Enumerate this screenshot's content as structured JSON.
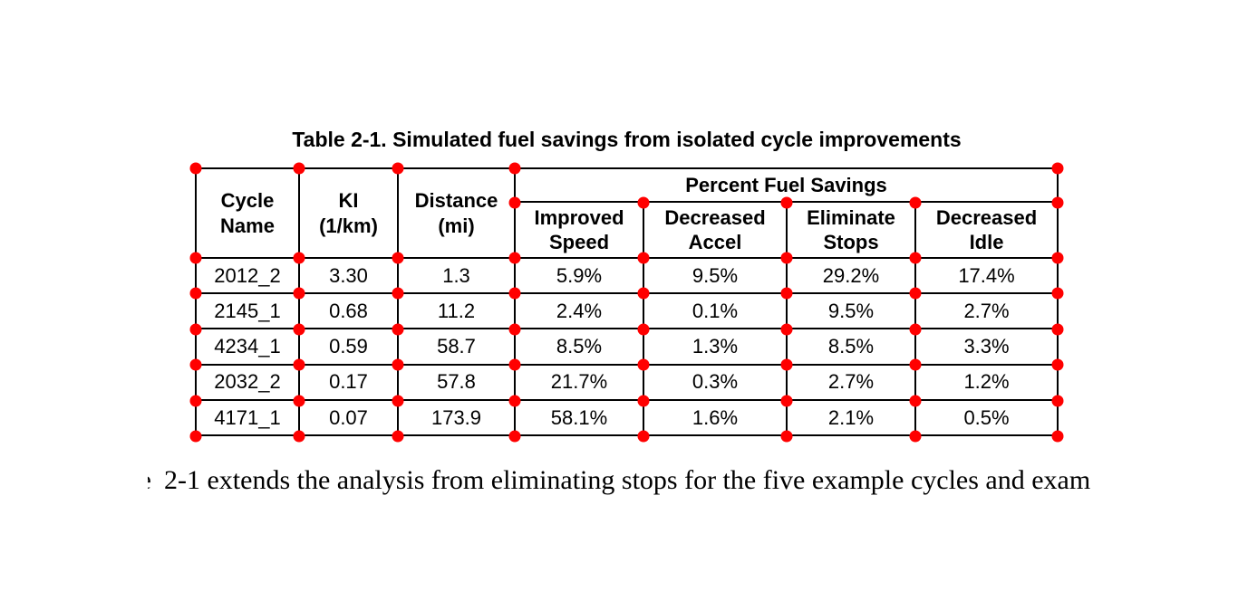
{
  "page": {
    "background_color": "#ffffff",
    "text_color": "#000000",
    "annotation_dot_color": "#ff0000"
  },
  "title": "Table 2-1. Simulated fuel savings from isolated cycle improvements",
  "table": {
    "headers": {
      "cycle_name": "Cycle\nName",
      "ki": "KI\n(1/km)",
      "distance": "Distance\n(mi)",
      "group": "Percent Fuel Savings",
      "improved_speed": "Improved\nSpeed",
      "decreased_accel": "Decreased\nAccel",
      "eliminate_stops": "Eliminate\nStops",
      "decreased_idle": "Decreased\nIdle"
    },
    "rows": [
      {
        "cycle": "2012_2",
        "ki": "3.30",
        "distance": "1.3",
        "improved_speed": "5.9%",
        "decreased_accel": "9.5%",
        "eliminate_stops": "29.2%",
        "decreased_idle": "17.4%"
      },
      {
        "cycle": "2145_1",
        "ki": "0.68",
        "distance": "11.2",
        "improved_speed": "2.4%",
        "decreased_accel": "0.1%",
        "eliminate_stops": "9.5%",
        "decreased_idle": "2.7%"
      },
      {
        "cycle": "4234_1",
        "ki": "0.59",
        "distance": "58.7",
        "improved_speed": "8.5%",
        "decreased_accel": "1.3%",
        "eliminate_stops": "8.5%",
        "decreased_idle": "3.3%"
      },
      {
        "cycle": "2032_2",
        "ki": "0.17",
        "distance": "57.8",
        "improved_speed": "21.7%",
        "decreased_accel": "0.3%",
        "eliminate_stops": "2.7%",
        "decreased_idle": "1.2%"
      },
      {
        "cycle": "4171_1",
        "ki": "0.07",
        "distance": "173.9",
        "improved_speed": "58.1%",
        "decreased_accel": "1.6%",
        "eliminate_stops": "2.1%",
        "decreased_idle": "0.5%"
      }
    ]
  },
  "paragraph": {
    "clipped_leading_letter": "e",
    "visible_text": "2-1 extends the analysis from eliminating stops for the five example cycles and exam"
  }
}
